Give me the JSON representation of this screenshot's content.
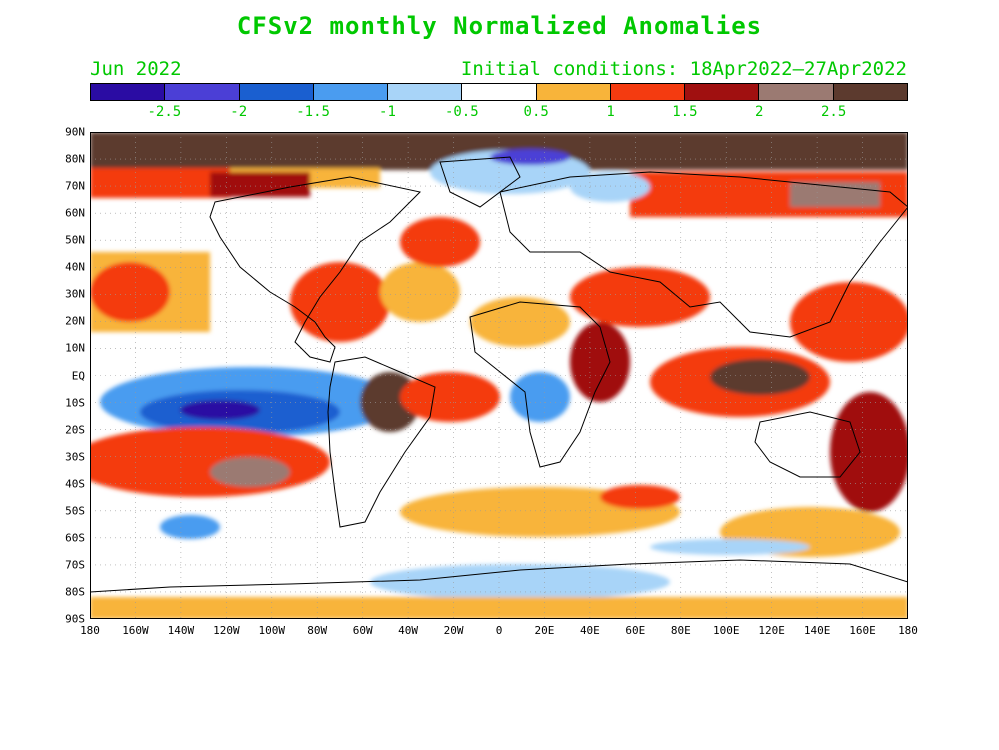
{
  "title": "CFSv2 monthly Normalized Anomalies",
  "valid_month": "Jun 2022",
  "initial_conditions": "Initial conditions: 18Apr2022—27Apr2022",
  "colorbar": {
    "colors": [
      "#2a0ca3",
      "#4b3fd6",
      "#1a5fd0",
      "#4a9cf0",
      "#a8d4f8",
      "#ffffff",
      "#f8b43a",
      "#f43b10",
      "#a01010",
      "#9b7a72",
      "#5c3a2e"
    ],
    "labels": [
      "-2.5",
      "-2",
      "-1.5",
      "-1",
      "-0.5",
      "0.5",
      "1",
      "1.5",
      "2",
      "2.5"
    ]
  },
  "axes": {
    "lat_labels": [
      "90N",
      "80N",
      "70N",
      "60N",
      "50N",
      "40N",
      "30N",
      "20N",
      "10N",
      "EQ",
      "10S",
      "20S",
      "30S",
      "40S",
      "50S",
      "60S",
      "70S",
      "80S",
      "90S"
    ],
    "lon_labels": [
      "180",
      "160W",
      "140W",
      "120W",
      "100W",
      "80W",
      "60W",
      "40W",
      "20W",
      "0",
      "20E",
      "40E",
      "60E",
      "80E",
      "100E",
      "120E",
      "140E",
      "160E",
      "180"
    ]
  }
}
